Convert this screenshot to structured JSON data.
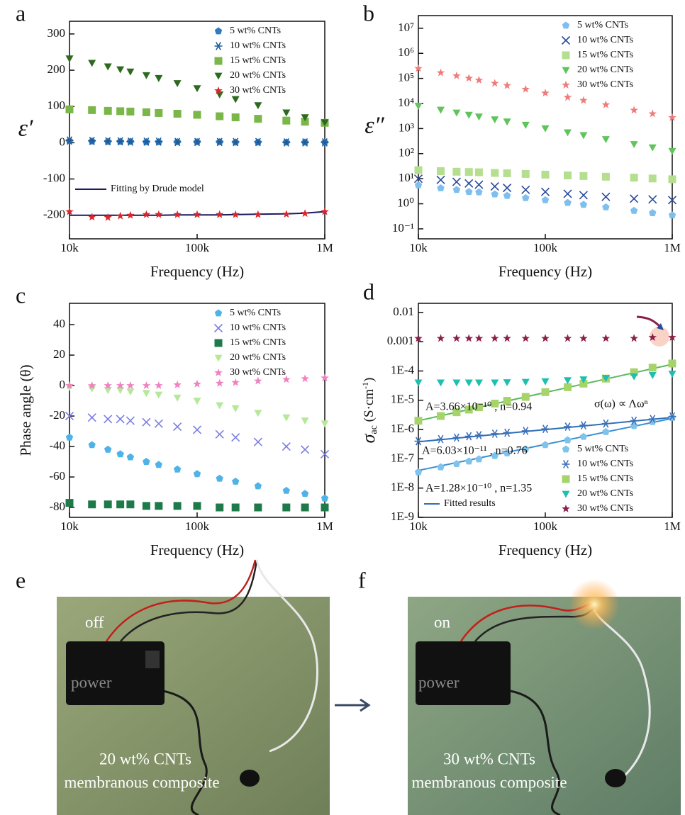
{
  "chart_data": [
    {
      "type": "scatter",
      "panel": "a",
      "x_log": true,
      "y_log": false,
      "x": [
        10000,
        15000,
        20000,
        25000,
        30000,
        40000,
        50000,
        70000,
        100000,
        150000,
        200000,
        300000,
        500000,
        700000,
        1000000
      ],
      "xlim": [
        10000,
        1000000
      ],
      "xticks": [
        {
          "value": 10000,
          "label": "10k"
        },
        {
          "value": 100000,
          "label": "100k"
        },
        {
          "value": 1000000,
          "label": "1M"
        }
      ],
      "ylim": [
        -265,
        335
      ],
      "yticks": [
        300,
        200,
        100,
        0,
        -100,
        -200
      ],
      "xlabel": "Frequency (Hz)",
      "ylabel": "ε′",
      "legend": "upper right",
      "series": [
        {
          "name": "5 wt% CNTs",
          "color": "#2e7bbf",
          "marker": "pentagon",
          "values": [
            5,
            4,
            3,
            3,
            3,
            2,
            2,
            2,
            2,
            2,
            1,
            1,
            1,
            1,
            1
          ]
        },
        {
          "name": "10 wt% CNTs",
          "color": "#1f5a96",
          "marker": "asterisk",
          "values": [
            6,
            5,
            4,
            4,
            3,
            3,
            3,
            2,
            2,
            2,
            2,
            2,
            1,
            1,
            1
          ]
        },
        {
          "name": "15 wt% CNTs",
          "color": "#7ab648",
          "marker": "square",
          "values": [
            92,
            90,
            88,
            87,
            86,
            84,
            82,
            80,
            77,
            73,
            70,
            66,
            61,
            58,
            55
          ]
        },
        {
          "name": "20 wt% CNTs",
          "color": "#2d6a1f",
          "marker": "triangle-down",
          "values": [
            232,
            220,
            210,
            202,
            196,
            186,
            178,
            164,
            150,
            133,
            120,
            103,
            83,
            70,
            56
          ]
        },
        {
          "name": "30 wt% CNTs",
          "color": "#d9262c",
          "marker": "star",
          "values": [
            -190,
            -205,
            -206,
            -202,
            -200,
            -198,
            -198,
            -198,
            -198,
            -198,
            -198,
            -198,
            -197,
            -195,
            -190
          ]
        }
      ],
      "fit": {
        "name": "Fitting by Drude model",
        "legend": "lower left",
        "lines": [
          {
            "color": "#1b1b5e",
            "x": [
              10000,
              15000,
              20000,
              25000,
              30000,
              40000,
              50000,
              70000,
              100000,
              150000,
              200000,
              300000,
              500000,
              700000,
              1000000
            ],
            "values": [
              -200,
              -200,
              -200,
              -200,
              -200,
              -200,
              -200,
              -199,
              -199,
              -199,
              -198,
              -197,
              -196,
              -194,
              -190
            ]
          }
        ]
      }
    },
    {
      "type": "scatter",
      "panel": "b",
      "x_log": true,
      "y_log": true,
      "x": [
        10000,
        15000,
        20000,
        25000,
        30000,
        40000,
        50000,
        70000,
        100000,
        150000,
        200000,
        300000,
        500000,
        700000,
        1000000
      ],
      "xlim": [
        10000,
        1000000
      ],
      "xticks": [
        {
          "value": 10000,
          "label": "10k"
        },
        {
          "value": 100000,
          "label": "100k"
        },
        {
          "value": 1000000,
          "label": "1M"
        }
      ],
      "ylim": [
        0.04,
        32000000
      ],
      "yticks": [
        {
          "value": 10000000,
          "label": "10⁷"
        },
        {
          "value": 1000000,
          "label": "10⁶"
        },
        {
          "value": 100000,
          "label": "10⁵"
        },
        {
          "value": 10000,
          "label": "10⁴"
        },
        {
          "value": 1000,
          "label": "10³"
        },
        {
          "value": 100,
          "label": "10²"
        },
        {
          "value": 10,
          "label": "10¹"
        },
        {
          "value": 1,
          "label": "10⁰"
        },
        {
          "value": 0.1,
          "label": "10⁻¹"
        }
      ],
      "xlabel": "Frequency (Hz)",
      "ylabel": "ε″",
      "legend": "upper right",
      "series": [
        {
          "name": "5 wt% CNTs",
          "color": "#7fbfee",
          "marker": "pentagon",
          "values": [
            5.5,
            4.2,
            3.6,
            3.0,
            2.9,
            2.4,
            2.1,
            1.7,
            1.4,
            1.1,
            0.92,
            0.73,
            0.53,
            0.43,
            0.35
          ]
        },
        {
          "name": "10 wt% CNTs",
          "color": "#2a4a9c",
          "marker": "x",
          "values": [
            10,
            9,
            7.5,
            6.5,
            5.8,
            4.9,
            4.3,
            3.6,
            3.0,
            2.5,
            2.2,
            1.9,
            1.6,
            1.5,
            1.4
          ]
        },
        {
          "name": "15 wt% CNTs",
          "color": "#b5df8e",
          "marker": "square",
          "values": [
            22,
            20,
            19,
            18.5,
            18,
            17,
            16.5,
            15.5,
            14.5,
            13.5,
            12.8,
            12,
            11,
            10.2,
            9.5
          ]
        },
        {
          "name": "20 wt% CNTs",
          "color": "#5fc45a",
          "marker": "triangle-down",
          "values": [
            8000,
            5550,
            4290,
            3500,
            2970,
            2300,
            1880,
            1390,
            1010,
            700,
            540,
            375,
            237,
            175,
            127
          ]
        },
        {
          "name": "30 wt% CNTs",
          "color": "#f07b7b",
          "marker": "star",
          "values": [
            250000,
            168000,
            127000,
            102000,
            85000,
            64000,
            52000,
            37000,
            26000,
            17600,
            13300,
            8900,
            5400,
            3900,
            2750
          ]
        }
      ]
    },
    {
      "type": "scatter",
      "panel": "c",
      "x_log": true,
      "y_log": false,
      "x": [
        10000,
        15000,
        20000,
        25000,
        30000,
        40000,
        50000,
        70000,
        100000,
        150000,
        200000,
        300000,
        500000,
        700000,
        1000000
      ],
      "xlim": [
        10000,
        1000000
      ],
      "xticks": [
        {
          "value": 10000,
          "label": "10k"
        },
        {
          "value": 100000,
          "label": "100k"
        },
        {
          "value": 1000000,
          "label": "1M"
        }
      ],
      "ylim": [
        -86.5,
        54
      ],
      "yticks": [
        40,
        20,
        0,
        -20,
        -40,
        -60,
        -80
      ],
      "xlabel": "Frequency (Hz)",
      "ylabel": "Phase angle (θ)",
      "legend": "upper right",
      "series": [
        {
          "name": "5 wt% CNTs",
          "color": "#4fb3e8",
          "marker": "pentagon",
          "values": [
            -34,
            -39,
            -42,
            -45,
            -47,
            -50,
            -52,
            -55,
            -58,
            -61,
            -63,
            -66,
            -69,
            -71,
            -74
          ]
        },
        {
          "name": "10 wt% CNTs",
          "color": "#7b7fe0",
          "marker": "x",
          "values": [
            -20,
            -21,
            -22,
            -22,
            -23,
            -24,
            -25,
            -27,
            -29,
            -32,
            -34,
            -37,
            -40,
            -42,
            -45
          ]
        },
        {
          "name": "15 wt% CNTs",
          "color": "#1f7a4a",
          "marker": "square",
          "values": [
            -77,
            -78,
            -78,
            -78,
            -78,
            -79,
            -79,
            -79,
            -79,
            -80,
            -80,
            -80,
            -80,
            -80,
            -80
          ]
        },
        {
          "name": "20 wt% CNTs",
          "color": "#b6e89a",
          "marker": "triangle-down",
          "values": [
            -1,
            -2,
            -3,
            -3,
            -4,
            -5,
            -6,
            -8,
            -10,
            -13,
            -15,
            -18,
            -21,
            -23,
            -25
          ]
        },
        {
          "name": "30 wt% CNTs",
          "color": "#f080c0",
          "marker": "star",
          "values": [
            0,
            0,
            0,
            0,
            0,
            0,
            0,
            0.5,
            1,
            1.5,
            2,
            3,
            4,
            4.5,
            5
          ]
        }
      ]
    },
    {
      "type": "scatter",
      "panel": "d",
      "x_log": true,
      "y_log": true,
      "x": [
        10000,
        15000,
        20000,
        25000,
        30000,
        40000,
        50000,
        70000,
        100000,
        150000,
        200000,
        300000,
        500000,
        700000,
        1000000
      ],
      "xlim": [
        10000,
        1000000
      ],
      "xticks": [
        {
          "value": 10000,
          "label": "10k"
        },
        {
          "value": 100000,
          "label": "100k"
        },
        {
          "value": 1000000,
          "label": "1M"
        }
      ],
      "ylim": [
        1e-09,
        0.0205
      ],
      "yticks": [
        0.01,
        0.001,
        {
          "value": 0.0001,
          "label": "1E-4"
        },
        {
          "value": 1e-05,
          "label": "1E-5"
        },
        {
          "value": 1e-06,
          "label": "1E-6"
        },
        {
          "value": 1e-07,
          "label": "1E-7"
        },
        {
          "value": 1e-08,
          "label": "1E-8"
        },
        {
          "value": 1e-09,
          "label": "1E-9"
        }
      ],
      "xlabel": "Frequency (Hz)",
      "ylabel": "σ",
      "ylabel_sub": "ac",
      "ylabel_unit": " (S·cm",
      "ylabel_sup": "-1",
      "ylabel_end": ")",
      "legend": "lower right",
      "series": [
        {
          "name": "5 wt% CNTs",
          "color": "#7ec3ee",
          "marker": "pentagon",
          "values": [
            3.5e-08,
            5.2e-08,
            6.7e-08,
            8.2e-08,
            9.7e-08,
            1.27e-07,
            1.56e-07,
            2.14e-07,
            2.98e-07,
            4.35e-07,
            5.7e-07,
            8.3e-07,
            1.33e-06,
            1.83e-06,
            2.56e-06
          ]
        },
        {
          "name": "10 wt% CNTs",
          "color": "#3b6fb8",
          "marker": "asterisk",
          "values": [
            4e-07,
            4.7e-07,
            5.3e-07,
            5.9e-07,
            6.4e-07,
            7.2e-07,
            7.8e-07,
            9e-07,
            1.05e-06,
            1.25e-06,
            1.4e-06,
            1.6e-06,
            2e-06,
            2.3e-06,
            2.8e-06
          ]
        },
        {
          "name": "15 wt% CNTs",
          "color": "#a7d46a",
          "marker": "square",
          "values": [
            2e-06,
            2.9e-06,
            3.9e-06,
            4.8e-06,
            5.8e-06,
            7.7e-06,
            9.6e-06,
            1.3e-05,
            1.9e-05,
            2.8e-05,
            3.7e-05,
            5.5e-05,
            9.1e-05,
            0.00013,
            0.00018
          ]
        },
        {
          "name": "20 wt% CNTs",
          "color": "#1fbfb0",
          "marker": "triangle-down",
          "values": [
            4e-05,
            4e-05,
            4e-05,
            4e-05,
            4e-05,
            4e-05,
            4.1e-05,
            4.2e-05,
            4.4e-05,
            4.8e-05,
            5.1e-05,
            5.7e-05,
            6.5e-05,
            7.2e-05,
            8e-05
          ]
        },
        {
          "name": "30 wt% CNTs",
          "color": "#8b1f4a",
          "marker": "star",
          "values": [
            0.0013,
            0.0013,
            0.0013,
            0.0013,
            0.0013,
            0.0013,
            0.0013,
            0.0013,
            0.0013,
            0.0013,
            0.0013,
            0.0013,
            0.0013,
            0.0014,
            0.0014
          ]
        }
      ],
      "fit": {
        "name": "Fitted results",
        "legend": "lower left",
        "lines": [
          {
            "color": "#5cb85c",
            "x": [
              10000,
              1000000
            ],
            "values": [
              2e-06,
              0.00017
            ]
          },
          {
            "color": "#2f6fb5",
            "x": [
              10000,
              1000000
            ],
            "values": [
              3.8e-07,
              2.6e-06
            ]
          },
          {
            "color": "#3a8fd0",
            "x": [
              10000,
              1000000
            ],
            "values": [
              4e-08,
              2.4e-06
            ]
          }
        ]
      },
      "annotations": [
        {
          "text": "A=3.66×10⁻¹⁰ , n=0.94",
          "color": "#3f9a3f"
        },
        {
          "text": "A=6.03×10⁻¹¹ , n=0.76",
          "color": "#1b2a6e"
        },
        {
          "text": "A=1.28×10⁻¹⁰ , n=1.35",
          "color": "#2f6fb5"
        },
        {
          "text": "σ(ω) ∝ Λωⁿ",
          "color": "#111"
        }
      ]
    }
  ],
  "photos": [
    {
      "panel": "e",
      "state": "off",
      "battery_label": "power",
      "caption": [
        "20 wt% CNTs",
        "membranous composite"
      ]
    },
    {
      "panel": "f",
      "state": "on",
      "battery_label": "power",
      "caption": [
        "30 wt% CNTs",
        "membranous composite"
      ]
    }
  ]
}
